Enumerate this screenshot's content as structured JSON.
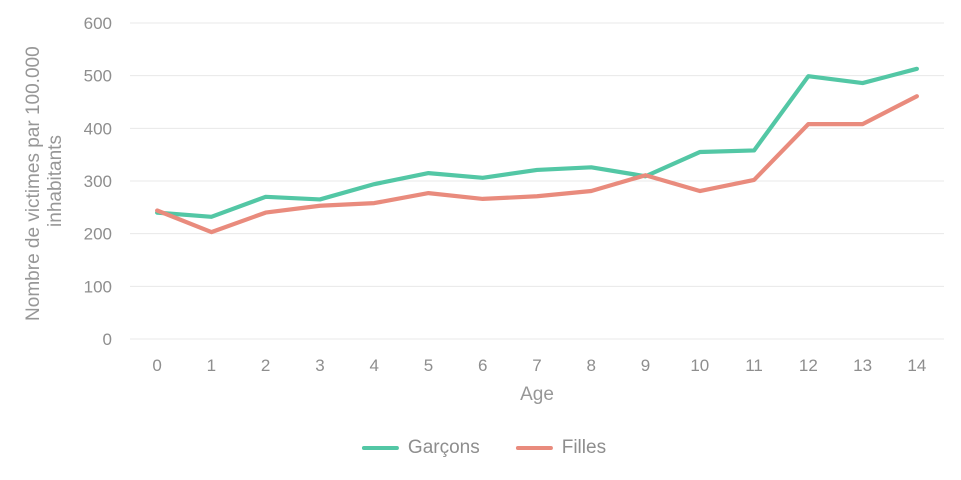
{
  "chart": {
    "y_axis_title_line1": "Nombre de victimes par 100.000",
    "y_axis_title_line2": "inhabitants",
    "x_axis_title": "Age"
  },
  "colors": {
    "garcons": "#53c7a5",
    "filles": "#e98b7d",
    "gridline": "#e8e8e8",
    "tick_text": "#8e8e8e"
  },
  "chart_data": {
    "type": "line",
    "x": [
      0,
      1,
      2,
      3,
      4,
      5,
      6,
      7,
      8,
      9,
      10,
      11,
      12,
      13,
      14
    ],
    "series": [
      {
        "name": "Garçons",
        "color": "#53c7a5",
        "values": [
          240,
          232,
          270,
          265,
          294,
          315,
          306,
          321,
          326,
          309,
          355,
          358,
          499,
          486,
          513
        ]
      },
      {
        "name": "Filles",
        "color": "#e98b7d",
        "values": [
          244,
          203,
          240,
          253,
          258,
          277,
          266,
          271,
          281,
          311,
          281,
          302,
          408,
          408,
          461
        ]
      }
    ],
    "title": "",
    "xlabel": "Age",
    "ylabel": "Nombre de victimes par 100.000 inhabitants",
    "ylim": [
      0,
      600
    ],
    "yticks": [
      0,
      100,
      200,
      300,
      400,
      500,
      600
    ],
    "grid": true,
    "legend_position": "bottom-center"
  }
}
